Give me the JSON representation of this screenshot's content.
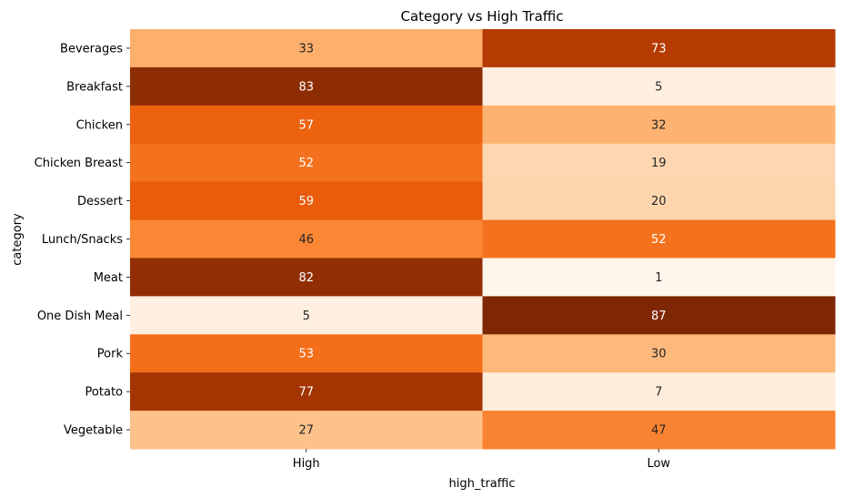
{
  "chart_data": {
    "type": "heatmap",
    "title": "Category vs High Traffic",
    "xlabel": "high_traffic",
    "ylabel": "category",
    "columns": [
      "High",
      "Low"
    ],
    "rows": [
      "Beverages",
      "Breakfast",
      "Chicken",
      "Chicken Breast",
      "Dessert",
      "Lunch/Snacks",
      "Meat",
      "One Dish Meal",
      "Pork",
      "Potato",
      "Vegetable"
    ],
    "values": [
      [
        33,
        73
      ],
      [
        83,
        5
      ],
      [
        57,
        32
      ],
      [
        52,
        19
      ],
      [
        59,
        20
      ],
      [
        46,
        52
      ],
      [
        82,
        1
      ],
      [
        5,
        87
      ],
      [
        53,
        30
      ],
      [
        77,
        7
      ],
      [
        27,
        47
      ]
    ],
    "colormap": "Oranges",
    "colorbar": false,
    "grid": false
  }
}
